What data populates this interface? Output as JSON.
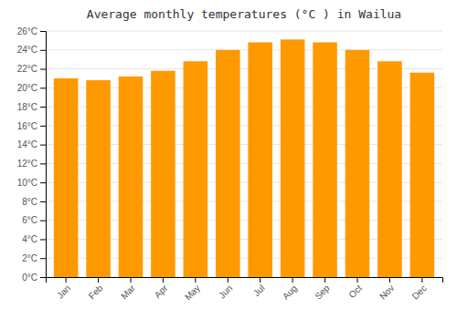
{
  "chart_data": {
    "type": "bar",
    "title": "Average monthly temperatures (°C ) in Wailua",
    "categories": [
      "Jan",
      "Feb",
      "Mar",
      "Apr",
      "May",
      "Jun",
      "Jul",
      "Aug",
      "Sep",
      "Oct",
      "Nov",
      "Dec"
    ],
    "values": [
      21.0,
      20.8,
      21.2,
      21.8,
      22.8,
      24.0,
      24.8,
      25.1,
      24.8,
      24.0,
      22.8,
      21.6
    ],
    "color": "#FF9900",
    "ylim": [
      0,
      26
    ],
    "yticks": [
      {
        "value": 0,
        "label": "0°C"
      },
      {
        "value": 2,
        "label": "2°C"
      },
      {
        "value": 4,
        "label": "4°C"
      },
      {
        "value": 6,
        "label": "6°C"
      },
      {
        "value": 8,
        "label": "8°C"
      },
      {
        "value": 10,
        "label": "10°C"
      },
      {
        "value": 12,
        "label": "12°C"
      },
      {
        "value": 14,
        "label": "14°C"
      },
      {
        "value": 16,
        "label": "16°C"
      },
      {
        "value": 18,
        "label": "18°C"
      },
      {
        "value": 20,
        "label": "20°C"
      },
      {
        "value": 22,
        "label": "22°C"
      },
      {
        "value": 24,
        "label": "24°C"
      },
      {
        "value": 26,
        "label": "26°C"
      }
    ],
    "grid": true
  }
}
